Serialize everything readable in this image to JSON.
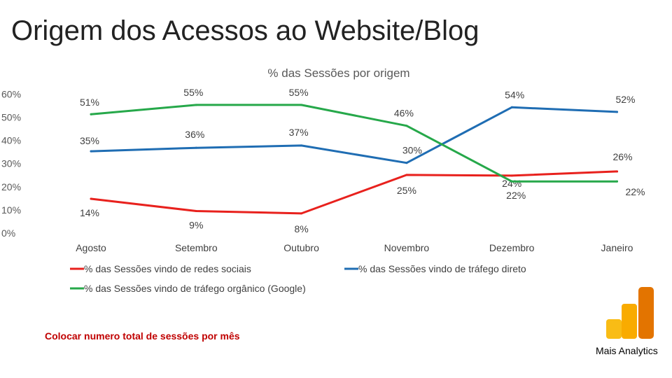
{
  "slide": {
    "title": "Origem dos Acessos ao Website/Blog",
    "note": "Colocar numero total de sessões por mês",
    "brand": "Mais Analytics"
  },
  "chart_data": {
    "type": "line",
    "title": "% das Sessões por origem",
    "categories": [
      "Agosto",
      "Setembro",
      "Outubro",
      "Novembro",
      "Dezembro",
      "Janeiro"
    ],
    "y_ticks": [
      "0%",
      "10%",
      "20%",
      "30%",
      "40%",
      "50%",
      "60%"
    ],
    "ylim": [
      0,
      60
    ],
    "grid": false,
    "legend_position": "bottom",
    "series": [
      {
        "name": "% das Sessões vindo de redes sociais",
        "color": "#e8211d",
        "values": [
          14.5,
          9.2,
          8.2,
          24.8,
          24.5,
          26.3
        ],
        "labels": [
          "14%",
          "9%",
          "8%",
          "25%",
          "24%",
          "26%"
        ]
      },
      {
        "name": "% das Sessões vindo de tráfego direto",
        "color": "#1f6db3",
        "values": [
          35,
          36.5,
          37.5,
          30,
          54,
          52
        ],
        "labels": [
          "35%",
          "36%",
          "37%",
          "30%",
          "54%",
          "52%"
        ]
      },
      {
        "name": "% das Sessões vindo de tráfego orgânico (Google)",
        "color": "#26a84a",
        "values": [
          51,
          55,
          55,
          46,
          22,
          22
        ],
        "labels": [
          "51%",
          "55%",
          "55%",
          "46%",
          "22%",
          "22%"
        ]
      }
    ]
  }
}
